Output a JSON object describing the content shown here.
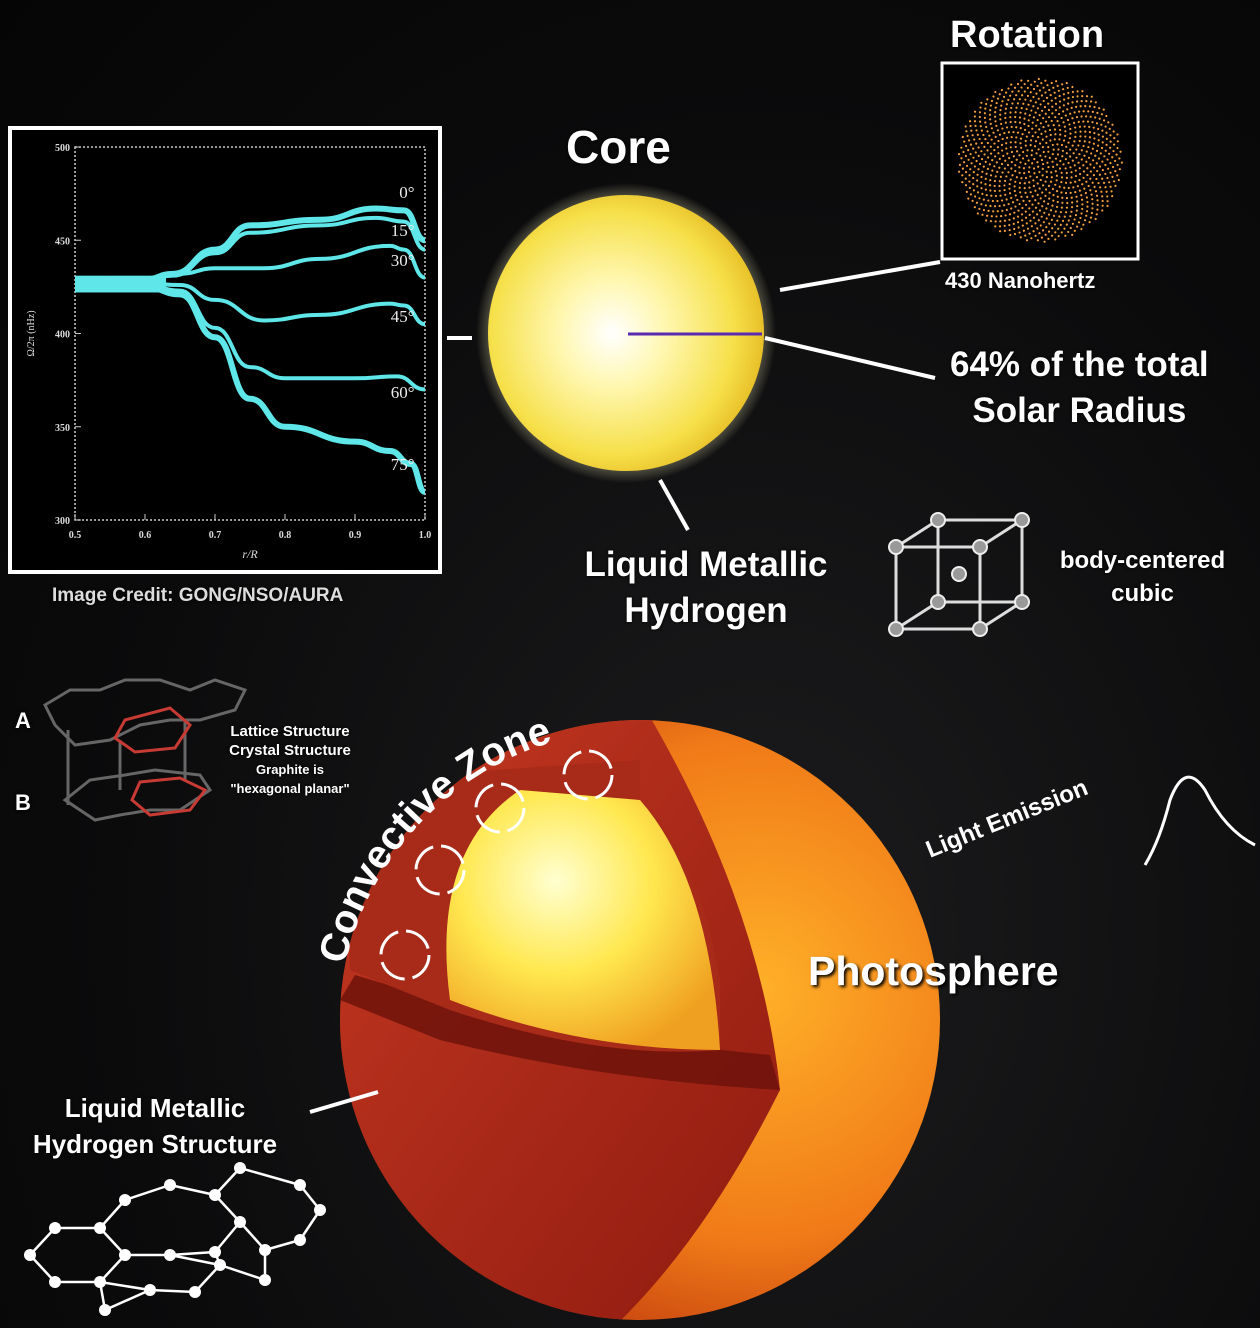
{
  "core": {
    "title": "Core",
    "radius_label": "64% of the total Solar Radius",
    "radius_line1": "64% of the total",
    "radius_line2": "Solar Radius",
    "material_line1": "Liquid Metallic",
    "material_line2": "Hydrogen"
  },
  "rotation": {
    "title": "Rotation",
    "frequency": "430 Nanohertz"
  },
  "bcc": {
    "line1": "body-centered",
    "line2": "cubic"
  },
  "credit": "Image Credit: GONG/NSO/AURA",
  "graphite": {
    "layer_a": "A",
    "layer_b": "B",
    "line1": "Lattice Structure",
    "line2": "Crystal Structure",
    "line3": "Graphite is",
    "line4": "\"hexagonal planar\""
  },
  "sun": {
    "convective_zone": "Convective Zone",
    "photosphere": "Photosphere",
    "light_emission": "Light Emission",
    "lmh_line1": "Liquid Metallic",
    "lmh_line2": "Hydrogen Structure"
  },
  "colors": {
    "curve": "#5ee6e8",
    "core": "#f7e85a",
    "convective": "#a8251a",
    "photosphere": "#f08a1c"
  },
  "chart_data": {
    "type": "line",
    "xlabel": "r/R",
    "ylabel": "Ω/2π (nHz)",
    "xlim": [
      0.5,
      1.0
    ],
    "ylim": [
      300,
      500
    ],
    "xticks": [
      "0.5",
      "0.6",
      "0.7",
      "0.8",
      "0.9",
      "1.0"
    ],
    "yticks": [
      "300",
      "350",
      "400",
      "450",
      "500"
    ],
    "series": [
      {
        "name": "0°",
        "points": [
          [
            0.5,
            428
          ],
          [
            0.6,
            429
          ],
          [
            0.64,
            432
          ],
          [
            0.7,
            445
          ],
          [
            0.75,
            458
          ],
          [
            0.85,
            461
          ],
          [
            0.93,
            467
          ],
          [
            0.97,
            466
          ],
          [
            1.0,
            450
          ]
        ]
      },
      {
        "name": "15°",
        "points": [
          [
            0.5,
            428
          ],
          [
            0.6,
            429
          ],
          [
            0.64,
            431
          ],
          [
            0.7,
            443
          ],
          [
            0.75,
            454
          ],
          [
            0.85,
            458
          ],
          [
            0.93,
            462
          ],
          [
            0.97,
            460
          ],
          [
            1.0,
            445
          ]
        ]
      },
      {
        "name": "30°",
        "points": [
          [
            0.5,
            428
          ],
          [
            0.6,
            429
          ],
          [
            0.65,
            432
          ],
          [
            0.7,
            435
          ],
          [
            0.77,
            435
          ],
          [
            0.85,
            440
          ],
          [
            0.95,
            447
          ],
          [
            0.97,
            445
          ],
          [
            1.0,
            430
          ]
        ]
      },
      {
        "name": "45°",
        "points": [
          [
            0.5,
            426
          ],
          [
            0.6,
            427
          ],
          [
            0.65,
            426
          ],
          [
            0.7,
            418
          ],
          [
            0.77,
            407
          ],
          [
            0.85,
            410
          ],
          [
            0.95,
            416
          ],
          [
            0.97,
            415
          ],
          [
            1.0,
            405
          ]
        ]
      },
      {
        "name": "60°",
        "points": [
          [
            0.5,
            425
          ],
          [
            0.6,
            426
          ],
          [
            0.65,
            423
          ],
          [
            0.7,
            403
          ],
          [
            0.75,
            382
          ],
          [
            0.8,
            376
          ],
          [
            0.9,
            376
          ],
          [
            0.96,
            377
          ],
          [
            1.0,
            370
          ]
        ]
      },
      {
        "name": "75°",
        "points": [
          [
            0.5,
            425
          ],
          [
            0.6,
            425
          ],
          [
            0.65,
            421
          ],
          [
            0.7,
            398
          ],
          [
            0.75,
            365
          ],
          [
            0.8,
            350
          ],
          [
            0.9,
            342
          ],
          [
            0.95,
            337
          ],
          [
            0.98,
            330
          ],
          [
            1.0,
            315
          ]
        ]
      }
    ]
  }
}
